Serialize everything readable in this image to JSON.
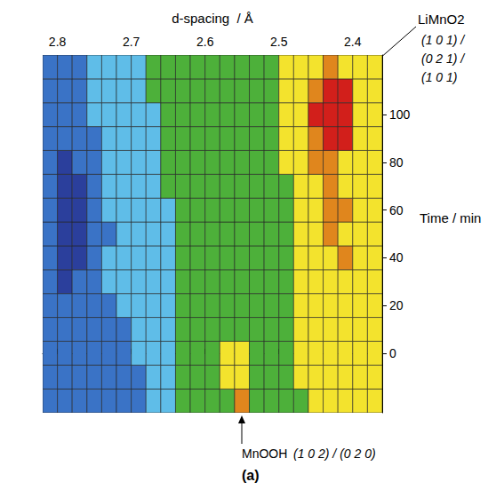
{
  "chart_data": {
    "type": "heatmap",
    "x_label": "d-spacing  / Å",
    "y_label": "Time / min",
    "panel": "(a)",
    "xlim": [
      2.82,
      2.36
    ],
    "xticks": [
      2.8,
      2.7,
      2.6,
      2.5,
      2.4
    ],
    "ylim": [
      -25,
      125
    ],
    "yticks": [
      0,
      20,
      40,
      60,
      80,
      100
    ],
    "grid": false,
    "colors": [
      "#2b3f9c",
      "#3a73c6",
      "#5fbde8",
      "#4db03a",
      "#f3e32d",
      "#e0861d",
      "#d21f1b"
    ],
    "x": [
      2.81,
      2.79,
      2.77,
      2.75,
      2.73,
      2.71,
      2.69,
      2.67,
      2.65,
      2.63,
      2.61,
      2.59,
      2.57,
      2.55,
      2.53,
      2.51,
      2.49,
      2.47,
      2.45,
      2.43,
      2.41,
      2.39,
      2.37
    ],
    "y": [
      -20,
      -10,
      0,
      10,
      20,
      30,
      40,
      50,
      60,
      70,
      80,
      90,
      100,
      110,
      120
    ],
    "z": [
      [
        1,
        1,
        1,
        1,
        1,
        1,
        1,
        2,
        2,
        3,
        3,
        3,
        3,
        5,
        3,
        3,
        3,
        3,
        4,
        4,
        4,
        4,
        4
      ],
      [
        1,
        1,
        1,
        1,
        1,
        1,
        1,
        2,
        2,
        3,
        3,
        3,
        4,
        4,
        3,
        3,
        3,
        4,
        4,
        4,
        4,
        4,
        4
      ],
      [
        1,
        1,
        1,
        1,
        1,
        1,
        2,
        2,
        2,
        3,
        3,
        3,
        4,
        4,
        3,
        3,
        3,
        4,
        4,
        4,
        4,
        4,
        4
      ],
      [
        1,
        1,
        1,
        1,
        1,
        1,
        2,
        2,
        2,
        3,
        3,
        3,
        3,
        3,
        3,
        3,
        3,
        4,
        4,
        4,
        4,
        4,
        4
      ],
      [
        1,
        1,
        1,
        1,
        1,
        2,
        2,
        2,
        2,
        3,
        3,
        3,
        3,
        3,
        3,
        3,
        3,
        4,
        4,
        4,
        4,
        4,
        4
      ],
      [
        1,
        0,
        1,
        1,
        2,
        2,
        2,
        2,
        2,
        3,
        3,
        3,
        3,
        3,
        3,
        3,
        3,
        4,
        4,
        4,
        4,
        4,
        4
      ],
      [
        1,
        0,
        0,
        1,
        2,
        2,
        2,
        2,
        2,
        3,
        3,
        3,
        3,
        3,
        3,
        3,
        3,
        4,
        4,
        4,
        5,
        4,
        4
      ],
      [
        1,
        0,
        0,
        1,
        1,
        2,
        2,
        2,
        2,
        3,
        3,
        3,
        3,
        3,
        3,
        3,
        3,
        4,
        4,
        5,
        4,
        4,
        4
      ],
      [
        1,
        0,
        0,
        1,
        2,
        2,
        2,
        2,
        2,
        3,
        3,
        3,
        3,
        3,
        3,
        3,
        3,
        4,
        4,
        5,
        5,
        4,
        4
      ],
      [
        1,
        0,
        0,
        1,
        2,
        2,
        2,
        2,
        3,
        3,
        3,
        3,
        3,
        3,
        3,
        3,
        3,
        4,
        4,
        5,
        4,
        4,
        4
      ],
      [
        1,
        0,
        1,
        1,
        2,
        2,
        2,
        2,
        3,
        3,
        3,
        3,
        3,
        3,
        3,
        3,
        4,
        4,
        5,
        5,
        4,
        4,
        4
      ],
      [
        1,
        1,
        1,
        1,
        2,
        2,
        2,
        2,
        3,
        3,
        3,
        3,
        3,
        3,
        3,
        3,
        4,
        4,
        5,
        6,
        6,
        4,
        4
      ],
      [
        1,
        1,
        1,
        2,
        2,
        2,
        2,
        2,
        3,
        3,
        3,
        3,
        3,
        3,
        3,
        3,
        4,
        4,
        6,
        6,
        6,
        4,
        4
      ],
      [
        1,
        1,
        1,
        2,
        2,
        2,
        2,
        3,
        3,
        3,
        3,
        3,
        3,
        3,
        3,
        3,
        4,
        4,
        5,
        6,
        6,
        4,
        4
      ],
      [
        1,
        1,
        1,
        2,
        2,
        2,
        2,
        3,
        3,
        3,
        3,
        3,
        3,
        3,
        3,
        3,
        4,
        4,
        4,
        5,
        4,
        4,
        4
      ]
    ],
    "annotations": [
      {
        "label": "LiMnO2",
        "indices": [
          "(1 0 1) /",
          "(0 2 1) /",
          "(1 0 1)"
        ]
      },
      {
        "label": "MnOOH",
        "indices": [
          "(1 0 2) / (0 2 0)"
        ]
      }
    ]
  }
}
